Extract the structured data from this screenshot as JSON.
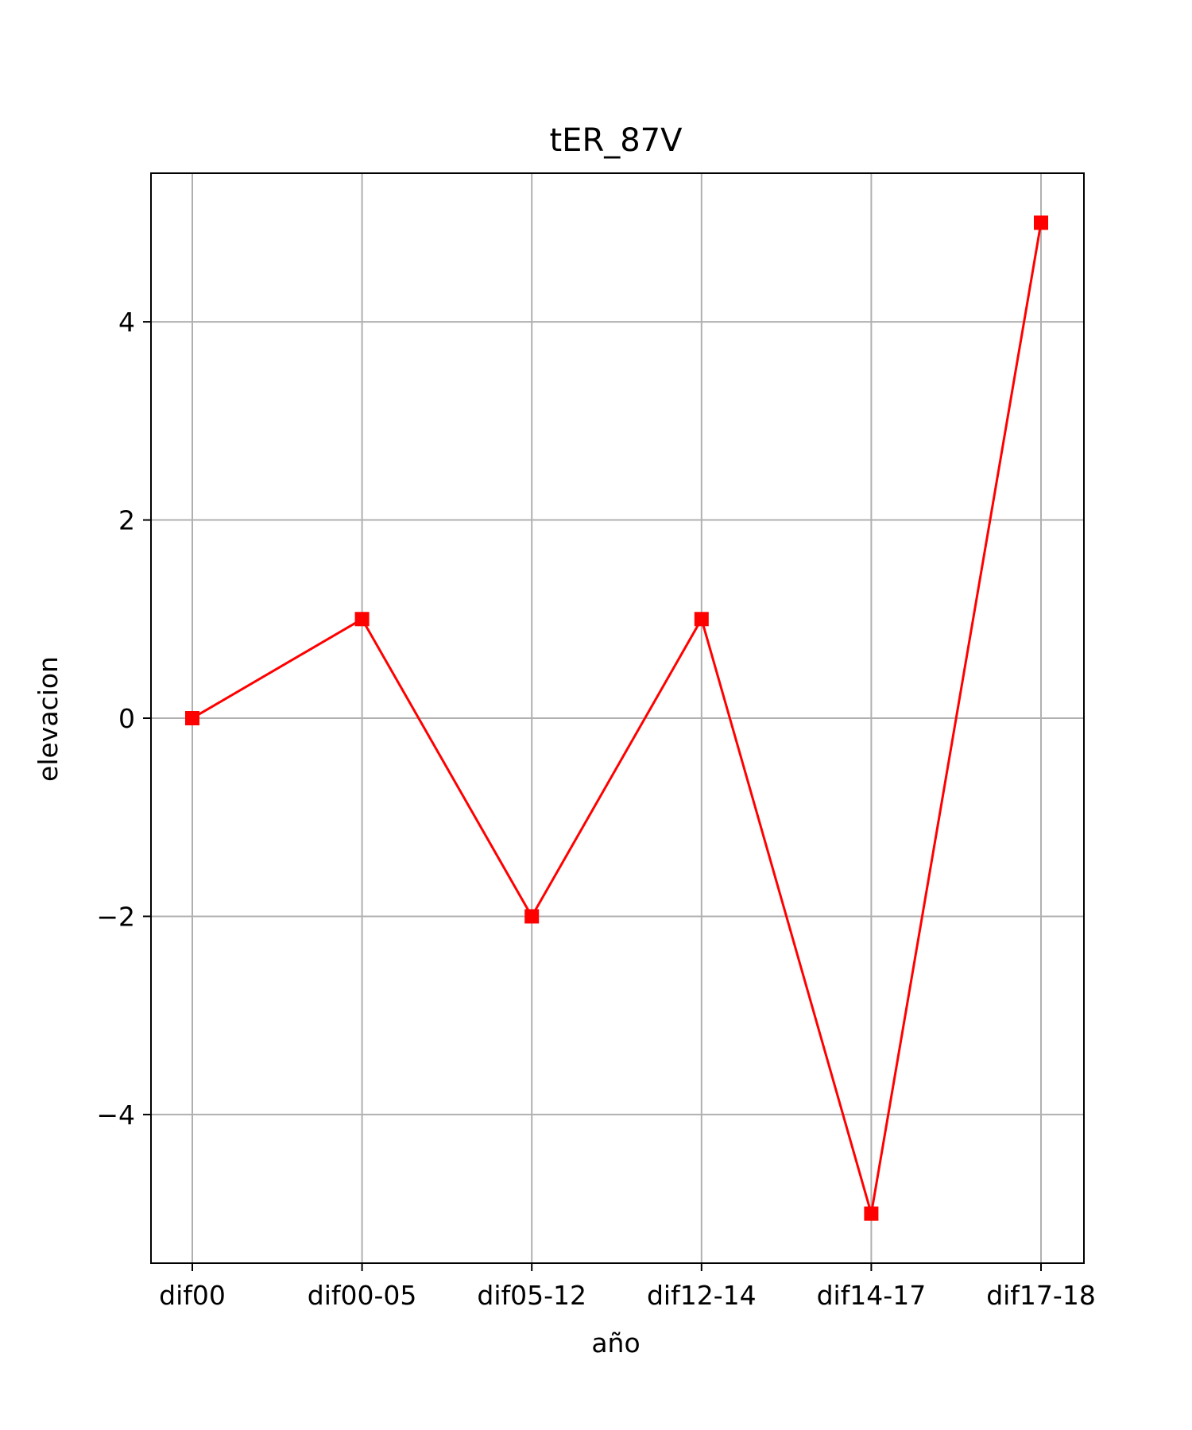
{
  "chart_data": {
    "type": "line",
    "title": "tER_87V",
    "xlabel": "año",
    "ylabel": "elevacion",
    "categories": [
      "dif00",
      "dif00-05",
      "dif05-12",
      "dif12-14",
      "dif14-17",
      "dif17-18"
    ],
    "series": [
      {
        "values": [
          0,
          1,
          -2,
          1,
          -5,
          5
        ],
        "color": "#ff0000",
        "marker": "square"
      }
    ],
    "yticks": [
      -4,
      -2,
      0,
      2,
      4
    ],
    "ytick_labels": [
      "−4",
      "−2",
      "0",
      "2",
      "4"
    ],
    "ylim": [
      -5.5,
      5.5
    ],
    "grid": true,
    "legend": "none"
  }
}
